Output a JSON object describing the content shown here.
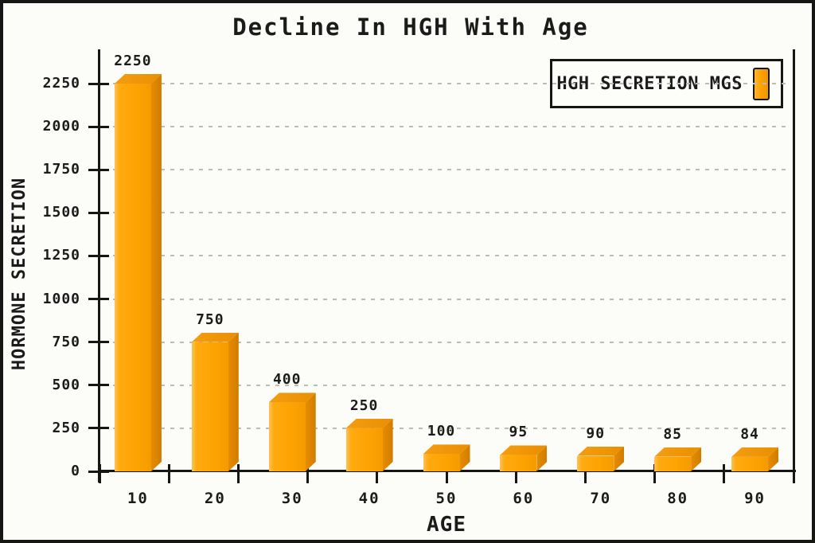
{
  "window": {
    "background": "#fcfcf9",
    "border_color": "#161616"
  },
  "chart_data": {
    "type": "bar",
    "title": "Decline In HGH With Age",
    "xlabel": "AGE",
    "ylabel": "HORMONE SECRETION",
    "legend": {
      "label": "HGH SECRETION MGS",
      "position": "top-right",
      "swatch_color": "#fda303"
    },
    "categories": [
      "10",
      "20",
      "30",
      "40",
      "50",
      "60",
      "70",
      "80",
      "90"
    ],
    "series": [
      {
        "name": "HGH SECRETION MGS",
        "values": [
          2250,
          750,
          400,
          250,
          100,
          95,
          90,
          85,
          84
        ]
      }
    ],
    "yticks": [
      0,
      250,
      500,
      750,
      1000,
      1250,
      1500,
      1750,
      2000,
      2250
    ],
    "ylim": [
      0,
      2250
    ],
    "grid": "horizontal-dashed",
    "bar_style": "3d",
    "colors": {
      "bar_front": "#fda303",
      "bar_front_highlight": "#ffc158",
      "bar_side": "#d98200",
      "bar_top": "#ef9307",
      "axis": "#161616",
      "gridline": "#bcbcb6",
      "text": "#1b1b1b"
    }
  }
}
